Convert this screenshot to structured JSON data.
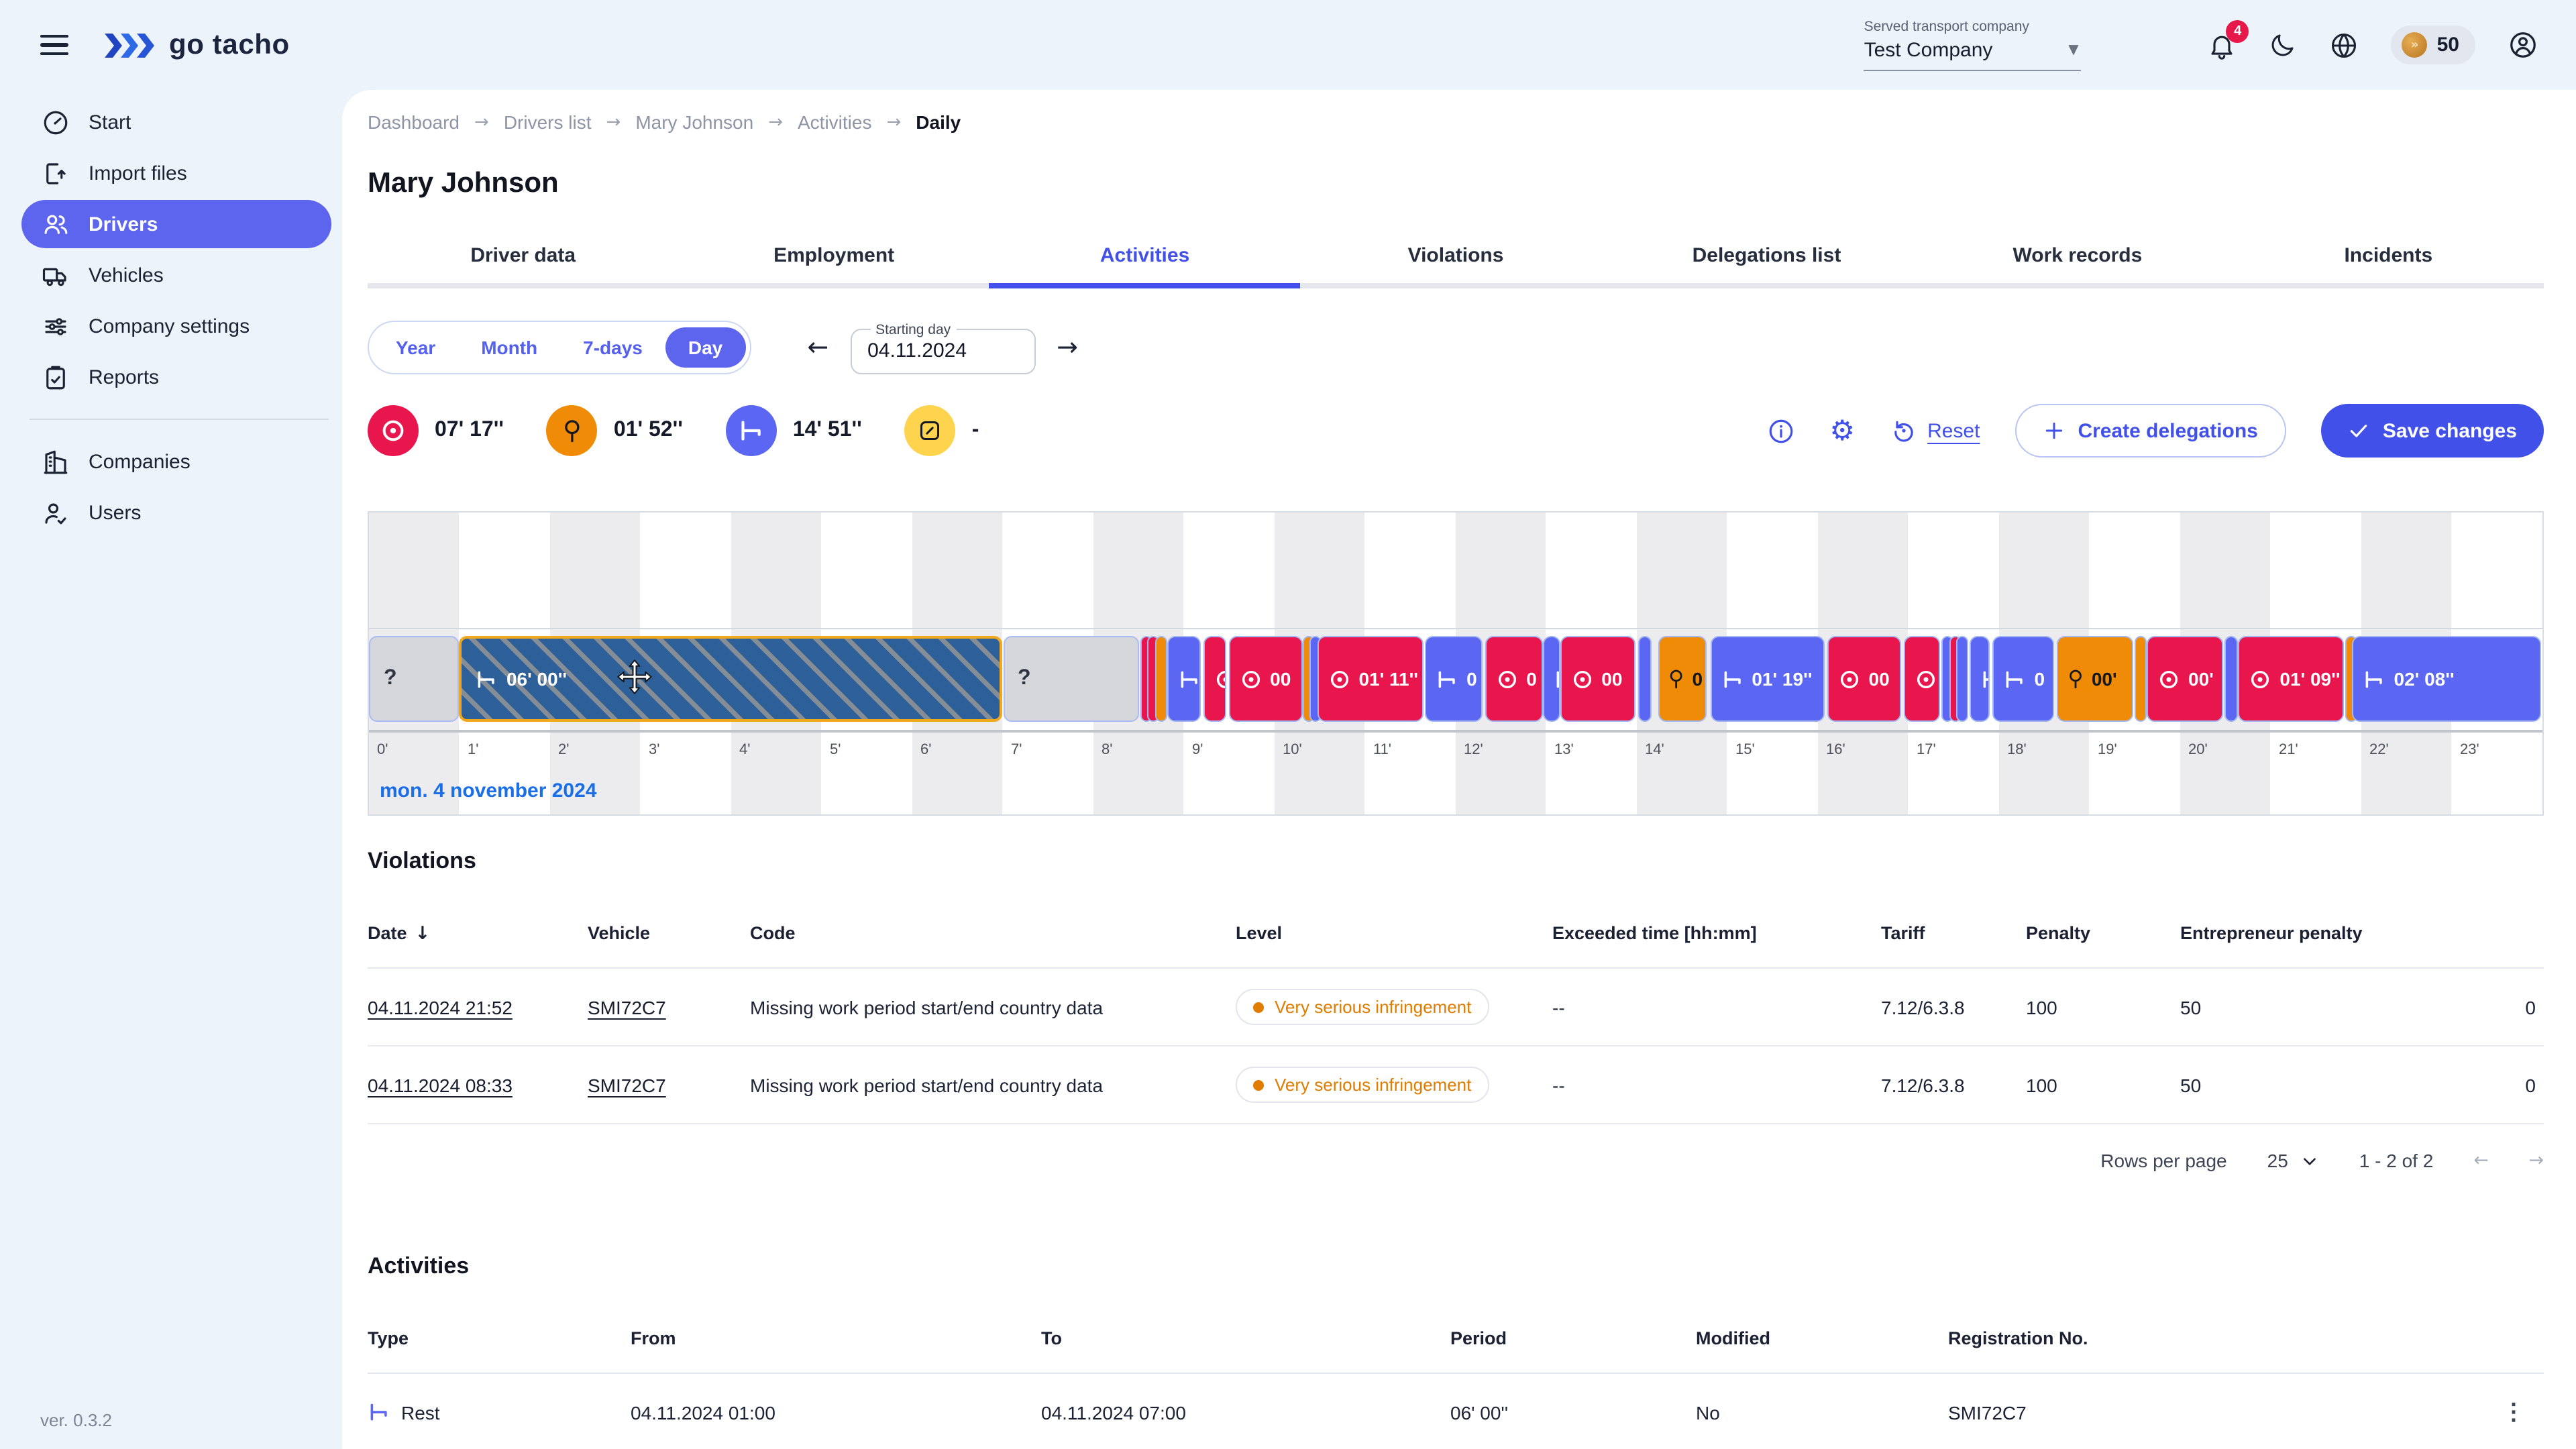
{
  "colors": {
    "bg": "#edf3fb",
    "accent": "#4050e8",
    "accent_soft": "#5d65ef",
    "badge": "#e8174a",
    "driving": "#e9164e",
    "work": "#f08b07",
    "rest": "#5b66f2",
    "availability": "#fed34e",
    "selected_fill": "#2d5f99",
    "selected_border": "#f0a81c",
    "date_link": "#1a6fe8",
    "warn": "#e07c00"
  },
  "header": {
    "logo_text": "go tacho",
    "company_label": "Served transport company",
    "company_value": "Test Company",
    "notifications_count": "4",
    "credits": "50"
  },
  "sidebar": {
    "items": [
      {
        "label": "Start",
        "icon": "gauge"
      },
      {
        "label": "Import files",
        "icon": "file-import"
      },
      {
        "label": "Drivers",
        "icon": "drivers",
        "active": true
      },
      {
        "label": "Vehicles",
        "icon": "truck"
      },
      {
        "label": "Company settings",
        "icon": "sliders"
      },
      {
        "label": "Reports",
        "icon": "clipboard"
      },
      {
        "divider": true
      },
      {
        "label": "Companies",
        "icon": "building"
      },
      {
        "label": "Users",
        "icon": "user-check"
      }
    ],
    "version": "ver. 0.3.2"
  },
  "breadcrumb": [
    "Dashboard",
    "Drivers list",
    "Mary Johnson",
    "Activities",
    "Daily"
  ],
  "page": {
    "title": "Mary Johnson"
  },
  "tabs": [
    {
      "label": "Driver data"
    },
    {
      "label": "Employment"
    },
    {
      "label": "Activities",
      "active": true
    },
    {
      "label": "Violations"
    },
    {
      "label": "Delegations list"
    },
    {
      "label": "Work records"
    },
    {
      "label": "Incidents"
    }
  ],
  "controls": {
    "view_options": [
      {
        "label": "Year"
      },
      {
        "label": "Month"
      },
      {
        "label": "7-days"
      },
      {
        "label": "Day",
        "selected": true
      }
    ],
    "starting_day_label": "Starting day",
    "starting_day_value": "04.11.2024"
  },
  "stats": [
    {
      "kind": "driving",
      "value": "07' 17''"
    },
    {
      "kind": "work",
      "value": "01' 52''"
    },
    {
      "kind": "rest",
      "value": "14' 51''"
    },
    {
      "kind": "availability",
      "value": "-"
    }
  ],
  "actions": {
    "reset_label": "Reset",
    "create_delegations_label": "Create delegations",
    "save_changes_label": "Save changes"
  },
  "timeline": {
    "hours": 24,
    "tick_suffix": "'",
    "date_label": "mon. 4 november 2024",
    "segments": [
      {
        "type": "unknown",
        "start": 0,
        "end": 1,
        "label": "?"
      },
      {
        "type": "rest",
        "start": 1,
        "end": 7,
        "label": "06' 00''",
        "selected": true
      },
      {
        "type": "unknown",
        "start": 7,
        "end": 8.51,
        "label": "?"
      },
      {
        "type": "driving",
        "start": 8.52,
        "end": 8.59
      },
      {
        "type": "driving",
        "start": 8.6,
        "end": 8.66
      },
      {
        "type": "work",
        "start": 8.68,
        "end": 8.76
      },
      {
        "type": "rest",
        "start": 8.81,
        "end": 9.18
      },
      {
        "type": "driving",
        "start": 9.21,
        "end": 9.46
      },
      {
        "type": "driving",
        "start": 9.49,
        "end": 10.31,
        "label": "00"
      },
      {
        "type": "work",
        "start": 10.31,
        "end": 10.38
      },
      {
        "type": "rest",
        "start": 10.39,
        "end": 10.45
      },
      {
        "type": "driving",
        "start": 10.47,
        "end": 11.64,
        "label": "01' 11''"
      },
      {
        "type": "rest",
        "start": 11.66,
        "end": 12.3,
        "label": "0"
      },
      {
        "type": "driving",
        "start": 12.32,
        "end": 12.96,
        "label": "0"
      },
      {
        "type": "rest",
        "start": 12.96,
        "end": 13.15
      },
      {
        "type": "driving",
        "start": 13.15,
        "end": 13.98,
        "label": "00"
      },
      {
        "type": "rest",
        "start": 14.02,
        "end": 14.16
      },
      {
        "type": "work",
        "start": 14.23,
        "end": 14.77,
        "label": "0"
      },
      {
        "type": "rest",
        "start": 14.81,
        "end": 16.08,
        "label": "01' 19''"
      },
      {
        "type": "driving",
        "start": 16.1,
        "end": 16.92,
        "label": "00"
      },
      {
        "type": "driving",
        "start": 16.95,
        "end": 17.35
      },
      {
        "type": "rest",
        "start": 17.36,
        "end": 17.44
      },
      {
        "type": "driving",
        "start": 17.45,
        "end": 17.52
      },
      {
        "type": "rest",
        "start": 17.53,
        "end": 17.66
      },
      {
        "type": "rest",
        "start": 17.68,
        "end": 17.9
      },
      {
        "type": "rest",
        "start": 17.93,
        "end": 18.61,
        "label": "0"
      },
      {
        "type": "work",
        "start": 18.64,
        "end": 19.48,
        "label": "00'"
      },
      {
        "type": "work",
        "start": 19.49,
        "end": 19.56
      },
      {
        "type": "driving",
        "start": 19.63,
        "end": 20.47,
        "label": "00'"
      },
      {
        "type": "rest",
        "start": 20.49,
        "end": 20.64
      },
      {
        "type": "driving",
        "start": 20.64,
        "end": 21.81,
        "label": "01' 09''"
      },
      {
        "type": "work",
        "start": 21.82,
        "end": 21.9
      },
      {
        "type": "rest",
        "start": 21.9,
        "end": 23.99,
        "label": "02' 08''"
      }
    ]
  },
  "violations": {
    "title": "Violations",
    "headers": [
      "Date",
      "Vehicle",
      "Code",
      "Level",
      "Exceeded time [hh:mm]",
      "Tariff",
      "Penalty",
      "Entrepreneur penalty",
      ""
    ],
    "rows": [
      {
        "date": "04.11.2024 21:52",
        "vehicle": "SMI72C7",
        "code": "Missing work period start/end country data",
        "level": "Very serious infringement",
        "exceeded": "--",
        "tariff": "7.12/6.3.8",
        "penalty": "100",
        "entrepreneur_penalty": "50",
        "extra": "0"
      },
      {
        "date": "04.11.2024 08:33",
        "vehicle": "SMI72C7",
        "code": "Missing work period start/end country data",
        "level": "Very serious infringement",
        "exceeded": "--",
        "tariff": "7.12/6.3.8",
        "penalty": "100",
        "entrepreneur_penalty": "50",
        "extra": "0"
      }
    ],
    "pagination": {
      "rows_per_page_label": "Rows per page",
      "rows_per_page": "25",
      "range": "1 - 2 of 2"
    }
  },
  "activities": {
    "title": "Activities",
    "headers": [
      "Type",
      "From",
      "To",
      "Period",
      "Modified",
      "Registration No.",
      ""
    ],
    "rows": [
      {
        "type": "Rest",
        "from": "04.11.2024 01:00",
        "to": "04.11.2024 07:00",
        "period": "06' 00''",
        "modified": "No",
        "registration": "SMI72C7"
      }
    ]
  }
}
